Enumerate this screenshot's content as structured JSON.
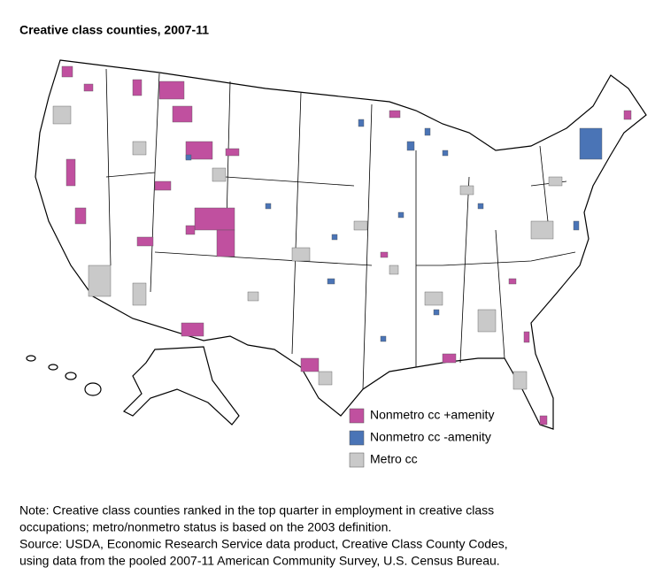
{
  "title": "Creative class counties, 2007-11",
  "legend": [
    {
      "label": "Nonmetro cc +amenity",
      "color": "#c0509f"
    },
    {
      "label": "Nonmetro cc -amenity",
      "color": "#4a74b6"
    },
    {
      "label": "Metro cc",
      "color": "#c9c9c9"
    }
  ],
  "note": [
    "Note: Creative class counties ranked in the top quarter in employment in creative class",
    "occupations; metro/nonmetro status is based on the 2003 definition.",
    "Source: USDA, Economic Research Service data product, Creative Class County Codes,",
    "using data from the pooled 2007-11 American Community Survey, U.S. Census Bureau."
  ]
}
